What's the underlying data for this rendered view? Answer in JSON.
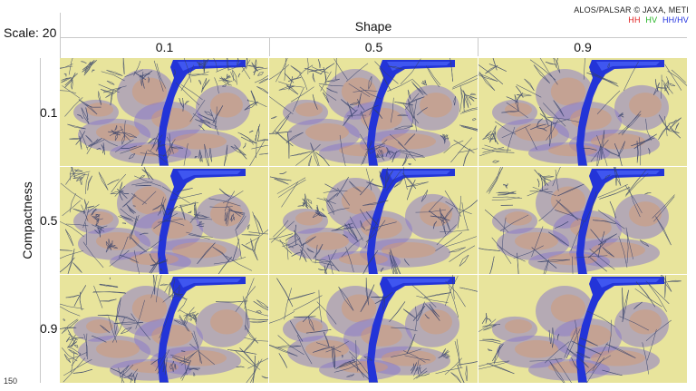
{
  "credit": "ALOS/PALSAR © JAXA, METI",
  "legend": [
    {
      "text": "HH",
      "color": "#e02020"
    },
    {
      "text": "HV",
      "color": "#22b422"
    },
    {
      "text": "HH/HV",
      "color": "#2030e0"
    }
  ],
  "scale_label": "Scale: 20",
  "shape_title": "Shape",
  "shape_values": [
    "0.1",
    "0.5",
    "0.9"
  ],
  "compactness_title": "Compactness",
  "compactness_values": [
    "0.1",
    "0.5",
    "0.9"
  ],
  "page_number": "150"
}
